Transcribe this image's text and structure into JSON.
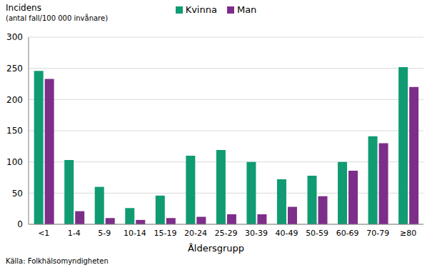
{
  "chart_data": {
    "type": "bar",
    "ylabel": "Incidens",
    "ylabel_unit": "(antal fall/100 000 invånare)",
    "xlabel": "Åldersgrupp",
    "source": "Källa: Folkhälsomyndigheten",
    "categories": [
      "<1",
      "1-4",
      "5-9",
      "10-14",
      "15-19",
      "20-24",
      "25-29",
      "30-39",
      "40-49",
      "50-59",
      "60-69",
      "70-79",
      "≥80"
    ],
    "series": [
      {
        "name": "Kvinna",
        "color": "#109b73",
        "values": [
          246,
          103,
          60,
          26,
          46,
          110,
          119,
          100,
          72,
          78,
          100,
          141,
          252
        ]
      },
      {
        "name": "Man",
        "color": "#7d2e8a",
        "values": [
          233,
          21,
          10,
          7,
          10,
          12,
          16,
          16,
          28,
          45,
          86,
          130,
          220
        ]
      }
    ],
    "ylim": [
      0,
      300
    ],
    "yticks": [
      0,
      50,
      100,
      150,
      200,
      250,
      300
    ],
    "grid": true,
    "legend": "top"
  }
}
